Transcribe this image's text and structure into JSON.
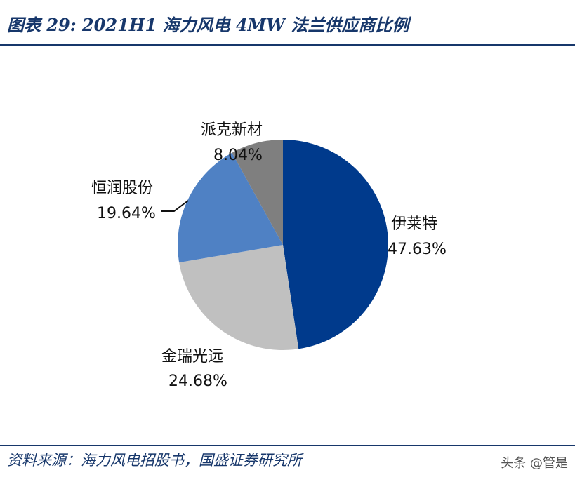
{
  "header": {
    "title": "图表 29:  2021H1 海力风电 4MW 法兰供应商比例"
  },
  "footer": {
    "source": "资料来源：海力风电招股书，国盛证券研究所",
    "watermark": "头条 @管是"
  },
  "chart_data": {
    "type": "pie",
    "title": "",
    "slices": [
      {
        "name": "伊莱特",
        "value": 47.63,
        "pct_label": "47.63%",
        "color": "#003a8c"
      },
      {
        "name": "金瑞光远",
        "value": 24.68,
        "pct_label": "24.68%",
        "color": "#c0c0c0"
      },
      {
        "name": "恒润股份",
        "value": 19.64,
        "pct_label": "19.64%",
        "color": "#4f81c4"
      },
      {
        "name": "派克新材",
        "value": 8.04,
        "pct_label": "8.04%",
        "color": "#7f7f7f"
      }
    ]
  }
}
